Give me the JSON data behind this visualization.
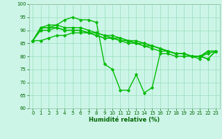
{
  "line1": [
    86,
    91,
    91,
    92,
    94,
    95,
    94,
    94,
    93,
    77,
    75,
    67,
    67,
    73,
    66,
    68,
    81,
    81,
    80,
    80,
    80,
    79,
    82,
    82
  ],
  "line2": [
    86,
    91,
    92,
    92,
    91,
    91,
    91,
    90,
    89,
    88,
    88,
    87,
    86,
    86,
    85,
    84,
    83,
    82,
    81,
    81,
    80,
    80,
    82,
    82
  ],
  "line3": [
    86,
    91,
    91,
    91,
    90,
    90,
    90,
    89,
    88,
    87,
    87,
    86,
    86,
    85,
    84,
    84,
    83,
    82,
    81,
    81,
    80,
    80,
    81,
    82
  ],
  "line4": [
    86,
    90,
    90,
    91,
    90,
    90,
    90,
    89,
    88,
    87,
    87,
    86,
    85,
    85,
    84,
    83,
    82,
    82,
    81,
    81,
    80,
    80,
    79,
    82
  ],
  "line5": [
    86,
    86,
    87,
    88,
    88,
    89,
    89,
    89,
    89,
    88,
    87,
    87,
    86,
    85,
    85,
    84,
    83,
    82,
    81,
    81,
    80,
    80,
    79,
    82
  ],
  "x": [
    0,
    1,
    2,
    3,
    4,
    5,
    6,
    7,
    8,
    9,
    10,
    11,
    12,
    13,
    14,
    15,
    16,
    17,
    18,
    19,
    20,
    21,
    22,
    23
  ],
  "xlabel": "Humidité relative (%)",
  "ylim": [
    60,
    100
  ],
  "yticks": [
    60,
    65,
    70,
    75,
    80,
    85,
    90,
    95,
    100
  ],
  "xticks": [
    0,
    1,
    2,
    3,
    4,
    5,
    6,
    7,
    8,
    9,
    10,
    11,
    12,
    13,
    14,
    15,
    16,
    17,
    18,
    19,
    20,
    21,
    22,
    23
  ],
  "line_color": "#00bb00",
  "bg_color": "#ccf5e8",
  "grid_color": "#99ddbb",
  "marker": "D",
  "marker_size": 2.2,
  "linewidth": 1.0
}
